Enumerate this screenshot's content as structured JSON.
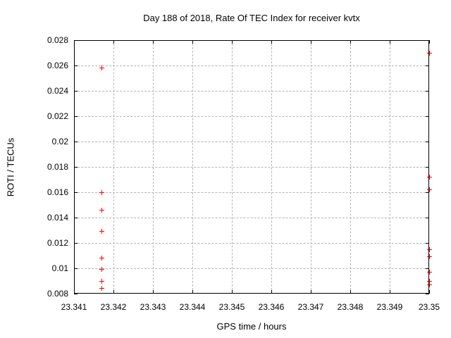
{
  "chart_data": {
    "type": "scatter",
    "title": "Day 188 of 2018, Rate Of TEC Index for receiver kvtx",
    "xlabel": "GPS time / hours",
    "ylabel": "ROTI / TECUs",
    "xlim": [
      23.341,
      23.35
    ],
    "ylim": [
      0.008,
      0.028
    ],
    "grid": true,
    "legend": "none",
    "marker": "plus",
    "colors": {
      "marker": "#ff0000",
      "grid": "#b4b4b4",
      "axis": "#000000",
      "text": "#000000",
      "background": "#ffffff"
    },
    "x_ticks": [
      {
        "value": 23.341,
        "label": "23.341"
      },
      {
        "value": 23.342,
        "label": "23.342"
      },
      {
        "value": 23.343,
        "label": "23.343"
      },
      {
        "value": 23.344,
        "label": "23.344"
      },
      {
        "value": 23.345,
        "label": "23.345"
      },
      {
        "value": 23.346,
        "label": "23.346"
      },
      {
        "value": 23.347,
        "label": "23.347"
      },
      {
        "value": 23.348,
        "label": "23.348"
      },
      {
        "value": 23.349,
        "label": "23.349"
      },
      {
        "value": 23.35,
        "label": "23.35"
      }
    ],
    "y_ticks": [
      {
        "value": 0.008,
        "label": "0.008"
      },
      {
        "value": 0.01,
        "label": "0.01"
      },
      {
        "value": 0.012,
        "label": "0.012"
      },
      {
        "value": 0.014,
        "label": "0.014"
      },
      {
        "value": 0.016,
        "label": "0.016"
      },
      {
        "value": 0.018,
        "label": "0.018"
      },
      {
        "value": 0.02,
        "label": "0.02"
      },
      {
        "value": 0.022,
        "label": "0.022"
      },
      {
        "value": 0.024,
        "label": "0.024"
      },
      {
        "value": 0.026,
        "label": "0.026"
      },
      {
        "value": 0.028,
        "label": "0.028"
      }
    ],
    "series": [
      {
        "name": "ROTI",
        "color": "#ff0000",
        "points": [
          {
            "x": 23.3417,
            "y": 0.0258
          },
          {
            "x": 23.3417,
            "y": 0.016
          },
          {
            "x": 23.3417,
            "y": 0.0146
          },
          {
            "x": 23.3417,
            "y": 0.0129
          },
          {
            "x": 23.3417,
            "y": 0.0108
          },
          {
            "x": 23.3417,
            "y": 0.0099
          },
          {
            "x": 23.3417,
            "y": 0.009
          },
          {
            "x": 23.3417,
            "y": 0.0084
          },
          {
            "x": 23.35,
            "y": 0.027
          },
          {
            "x": 23.35,
            "y": 0.0172
          },
          {
            "x": 23.35,
            "y": 0.0162
          },
          {
            "x": 23.35,
            "y": 0.0115
          },
          {
            "x": 23.35,
            "y": 0.0109
          },
          {
            "x": 23.35,
            "y": 0.0097
          },
          {
            "x": 23.35,
            "y": 0.009
          },
          {
            "x": 23.35,
            "y": 0.0087
          }
        ]
      }
    ]
  }
}
